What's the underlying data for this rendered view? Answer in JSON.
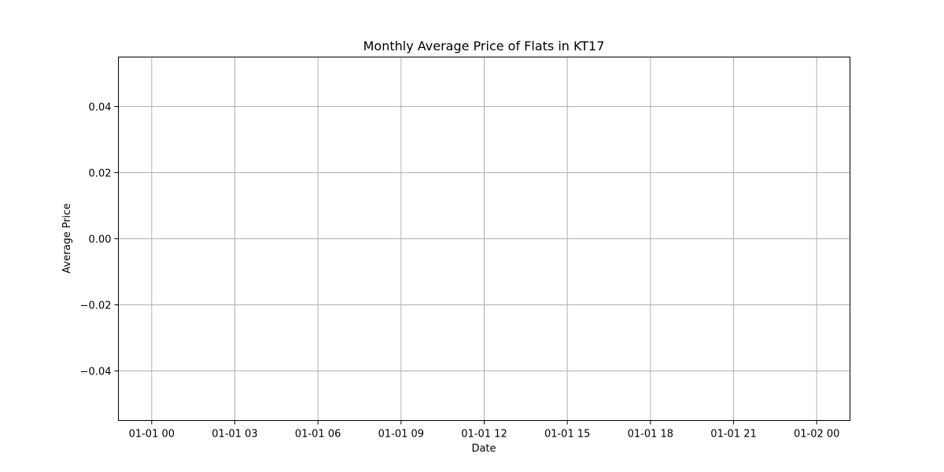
{
  "chart_data": {
    "type": "line",
    "title": "Monthly Average Price of Flats in KT17",
    "xlabel": "Date",
    "ylabel": "Average Price",
    "x": [],
    "series": [
      {
        "values": []
      }
    ],
    "x_ticks": [
      "01-01 00",
      "01-01 03",
      "01-01 06",
      "01-01 09",
      "01-01 12",
      "01-01 15",
      "01-01 18",
      "01-01 21",
      "01-02 00"
    ],
    "y_ticks": [
      "−0.04",
      "−0.02",
      "0.00",
      "0.02",
      "0.04"
    ],
    "y_tick_values": [
      -0.04,
      -0.02,
      0.0,
      0.02,
      0.04
    ],
    "ylim": [
      -0.055,
      0.055
    ],
    "grid": true,
    "colors": {
      "grid": "#b0b0b0",
      "frame": "#000000"
    }
  }
}
